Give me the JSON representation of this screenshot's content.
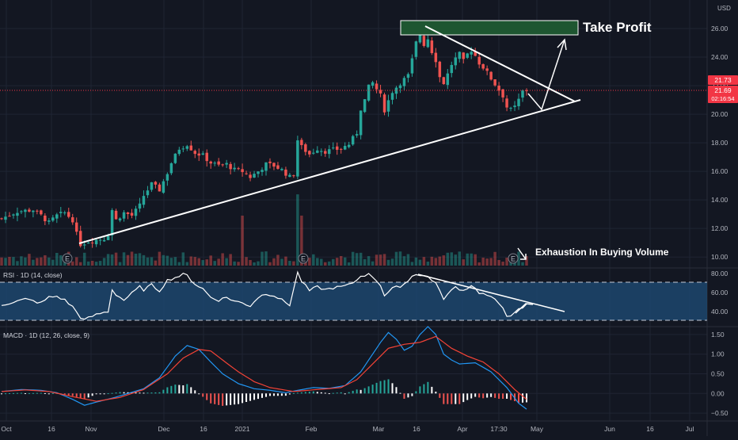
{
  "colors": {
    "background": "#131722",
    "grid": "#1f2433",
    "up": "#26a69a",
    "down": "#ef5350",
    "axis_text": "#b2b5be",
    "rsi_band": "#1e4a73",
    "rsi_line": "#ffffff",
    "macd_line": "#2196f3",
    "signal_line": "#f44336",
    "take_profit_box": "#1e5631",
    "price_line": "#f23645"
  },
  "price_axis": {
    "currency": "USD",
    "ticks": [
      "26.00",
      "24.00",
      "22.00",
      "20.00",
      "18.00",
      "16.00",
      "14.00",
      "12.00",
      "10.00"
    ],
    "last_price": "21.73",
    "current_price": "21.69",
    "countdown": "02:16:54"
  },
  "time_axis": {
    "labels": [
      "Oct",
      "16",
      "Nov",
      "Dec",
      "16",
      "2021",
      "Feb",
      "Mar",
      "16",
      "Apr",
      "17:30",
      "May",
      "Jun",
      "16",
      "Jul"
    ]
  },
  "annotations": {
    "take_profit": "Take Profit",
    "volume_note": "Exhaustion In Buying Volume"
  },
  "event_marker_letter": "E",
  "rsi": {
    "title": "RSI · 1D (14, close)",
    "ticks": [
      "80.00",
      "60.00",
      "40.00"
    ]
  },
  "macd": {
    "title": "MACD · 1D (12, 26, close, 9)",
    "ticks": [
      "1.50",
      "1.00",
      "0.50",
      "0.00",
      "−0.50"
    ]
  },
  "chart_data": {
    "type": "candlestick",
    "price_ylim": [
      9.4,
      28.0
    ],
    "price_path": [
      [
        0,
        12.7
      ],
      [
        4,
        13.2
      ],
      [
        8,
        13.3
      ],
      [
        10,
        12.9
      ],
      [
        12,
        12.4
      ],
      [
        14,
        12.9
      ],
      [
        16,
        13.1
      ],
      [
        18,
        12.6
      ],
      [
        19,
        11.6
      ],
      [
        20,
        10.9
      ],
      [
        22,
        11.1
      ],
      [
        24,
        11.2
      ],
      [
        26,
        11.3
      ],
      [
        27,
        11.6
      ],
      [
        28,
        13.3
      ],
      [
        29,
        12.6
      ],
      [
        31,
        13.1
      ],
      [
        33,
        12.9
      ],
      [
        35,
        13.6
      ],
      [
        36,
        14.3
      ],
      [
        38,
        15.1
      ],
      [
        40,
        14.7
      ],
      [
        42,
        15.9
      ],
      [
        43,
        16.6
      ],
      [
        45,
        17.6
      ],
      [
        47,
        17.9
      ],
      [
        49,
        17.3
      ],
      [
        51,
        17.1
      ],
      [
        53,
        16.6
      ],
      [
        55,
        16.4
      ],
      [
        57,
        16.5
      ],
      [
        59,
        16.1
      ],
      [
        61,
        16.0
      ],
      [
        63,
        15.6
      ],
      [
        65,
        16.0
      ],
      [
        67,
        16.5
      ],
      [
        69,
        16.4
      ],
      [
        71,
        16.1
      ],
      [
        73,
        15.6
      ],
      [
        74,
        15.8
      ],
      [
        75,
        18.2
      ],
      [
        76,
        17.7
      ],
      [
        78,
        17.2
      ],
      [
        80,
        17.6
      ],
      [
        82,
        17.4
      ],
      [
        84,
        17.5
      ],
      [
        86,
        17.6
      ],
      [
        88,
        17.9
      ],
      [
        90,
        18.7
      ],
      [
        91,
        20.4
      ],
      [
        92,
        21.0
      ],
      [
        93,
        21.9
      ],
      [
        94,
        22.2
      ],
      [
        96,
        21.3
      ],
      [
        97,
        20.3
      ],
      [
        99,
        21.6
      ],
      [
        101,
        22.2
      ],
      [
        103,
        22.7
      ],
      [
        104,
        23.8
      ],
      [
        105,
        25.0
      ],
      [
        106,
        25.6
      ],
      [
        107,
        24.9
      ],
      [
        108,
        25.3
      ],
      [
        109,
        24.4
      ],
      [
        110,
        23.8
      ],
      [
        111,
        22.6
      ],
      [
        112,
        22.2
      ],
      [
        113,
        22.8
      ],
      [
        114,
        23.5
      ],
      [
        115,
        23.9
      ],
      [
        116,
        24.2
      ],
      [
        117,
        23.7
      ],
      [
        118,
        24.2
      ],
      [
        119,
        24.5
      ],
      [
        120,
        24.1
      ],
      [
        121,
        23.6
      ],
      [
        122,
        23.3
      ],
      [
        123,
        22.9
      ],
      [
        124,
        22.5
      ],
      [
        125,
        22.1
      ],
      [
        126,
        21.7
      ],
      [
        127,
        21.3
      ],
      [
        128,
        20.5
      ],
      [
        129,
        20.3
      ],
      [
        130,
        20.5
      ],
      [
        131,
        21.0
      ],
      [
        132,
        21.6
      ],
      [
        133,
        21.7
      ]
    ],
    "volume_spikes": [
      [
        61,
        5
      ],
      [
        75,
        8
      ],
      [
        76,
        6
      ]
    ],
    "rsi": {
      "ylim": [
        24,
        86
      ],
      "overbought": 70,
      "oversold": 30,
      "path": [
        [
          0,
          47
        ],
        [
          3,
          50
        ],
        [
          6,
          53
        ],
        [
          8,
          51
        ],
        [
          10,
          49
        ],
        [
          12,
          55
        ],
        [
          14,
          56
        ],
        [
          16,
          52
        ],
        [
          18,
          45
        ],
        [
          20,
          34
        ],
        [
          21,
          31
        ],
        [
          23,
          35
        ],
        [
          25,
          38
        ],
        [
          27,
          40
        ],
        [
          28,
          63
        ],
        [
          29,
          58
        ],
        [
          31,
          52
        ],
        [
          33,
          59
        ],
        [
          35,
          66
        ],
        [
          36,
          63
        ],
        [
          38,
          68
        ],
        [
          40,
          62
        ],
        [
          42,
          73
        ],
        [
          44,
          76
        ],
        [
          46,
          79
        ],
        [
          47,
          78
        ],
        [
          49,
          69
        ],
        [
          51,
          64
        ],
        [
          53,
          55
        ],
        [
          55,
          52
        ],
        [
          57,
          55
        ],
        [
          59,
          51
        ],
        [
          61,
          49
        ],
        [
          63,
          46
        ],
        [
          65,
          55
        ],
        [
          67,
          59
        ],
        [
          69,
          57
        ],
        [
          71,
          52
        ],
        [
          73,
          47
        ],
        [
          75,
          81
        ],
        [
          76,
          72
        ],
        [
          78,
          62
        ],
        [
          80,
          66
        ],
        [
          82,
          63
        ],
        [
          84,
          65
        ],
        [
          86,
          66
        ],
        [
          88,
          68
        ],
        [
          90,
          73
        ],
        [
          91,
          78
        ],
        [
          93,
          79
        ],
        [
          94,
          77
        ],
        [
          96,
          68
        ],
        [
          97,
          57
        ],
        [
          99,
          64
        ],
        [
          101,
          67
        ],
        [
          103,
          72
        ],
        [
          104,
          78
        ],
        [
          105,
          80
        ],
        [
          106,
          78
        ],
        [
          108,
          77
        ],
        [
          110,
          70
        ],
        [
          111,
          61
        ],
        [
          112,
          54
        ],
        [
          113,
          58
        ],
        [
          115,
          66
        ],
        [
          117,
          62
        ],
        [
          119,
          68
        ],
        [
          121,
          60
        ],
        [
          123,
          57
        ],
        [
          125,
          52
        ],
        [
          127,
          45
        ],
        [
          128,
          36
        ],
        [
          129,
          34
        ],
        [
          131,
          42
        ],
        [
          132,
          44
        ],
        [
          133,
          47
        ]
      ]
    },
    "macd": {
      "ylim": [
        -0.7,
        1.7
      ],
      "macd_line": [
        [
          0,
          0.05
        ],
        [
          5,
          0.1
        ],
        [
          10,
          0.08
        ],
        [
          14,
          0.02
        ],
        [
          18,
          -0.15
        ],
        [
          21,
          -0.3
        ],
        [
          24,
          -0.22
        ],
        [
          28,
          -0.12
        ],
        [
          32,
          0.0
        ],
        [
          36,
          0.12
        ],
        [
          40,
          0.4
        ],
        [
          44,
          0.95
        ],
        [
          47,
          1.22
        ],
        [
          50,
          1.12
        ],
        [
          53,
          0.8
        ],
        [
          56,
          0.5
        ],
        [
          60,
          0.25
        ],
        [
          64,
          0.12
        ],
        [
          68,
          0.08
        ],
        [
          72,
          0.02
        ],
        [
          75,
          0.08
        ],
        [
          79,
          0.15
        ],
        [
          83,
          0.13
        ],
        [
          87,
          0.2
        ],
        [
          91,
          0.55
        ],
        [
          94,
          1.0
        ],
        [
          96,
          1.3
        ],
        [
          98,
          1.55
        ],
        [
          100,
          1.38
        ],
        [
          102,
          1.1
        ],
        [
          104,
          1.2
        ],
        [
          106,
          1.5
        ],
        [
          108,
          1.7
        ],
        [
          110,
          1.5
        ],
        [
          112,
          1.0
        ],
        [
          114,
          0.85
        ],
        [
          116,
          0.75
        ],
        [
          120,
          0.78
        ],
        [
          124,
          0.55
        ],
        [
          128,
          0.15
        ],
        [
          131,
          -0.25
        ],
        [
          133,
          -0.4
        ]
      ],
      "signal_line": [
        [
          0,
          0.05
        ],
        [
          6,
          0.09
        ],
        [
          12,
          0.05
        ],
        [
          18,
          -0.08
        ],
        [
          24,
          -0.2
        ],
        [
          30,
          -0.1
        ],
        [
          36,
          0.1
        ],
        [
          42,
          0.5
        ],
        [
          46,
          0.9
        ],
        [
          50,
          1.12
        ],
        [
          53,
          1.08
        ],
        [
          56,
          0.85
        ],
        [
          60,
          0.55
        ],
        [
          64,
          0.3
        ],
        [
          68,
          0.15
        ],
        [
          74,
          0.05
        ],
        [
          80,
          0.1
        ],
        [
          86,
          0.15
        ],
        [
          90,
          0.35
        ],
        [
          94,
          0.75
        ],
        [
          98,
          1.15
        ],
        [
          102,
          1.25
        ],
        [
          106,
          1.3
        ],
        [
          110,
          1.45
        ],
        [
          114,
          1.15
        ],
        [
          118,
          0.95
        ],
        [
          122,
          0.8
        ],
        [
          126,
          0.5
        ],
        [
          130,
          0.1
        ],
        [
          133,
          -0.15
        ]
      ]
    }
  }
}
